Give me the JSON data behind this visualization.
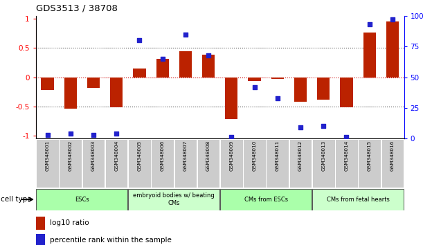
{
  "title": "GDS3513 / 38708",
  "samples": [
    "GSM348001",
    "GSM348002",
    "GSM348003",
    "GSM348004",
    "GSM348005",
    "GSM348006",
    "GSM348007",
    "GSM348008",
    "GSM348009",
    "GSM348010",
    "GSM348011",
    "GSM348012",
    "GSM348013",
    "GSM348014",
    "GSM348015",
    "GSM348016"
  ],
  "log10_ratio": [
    -0.22,
    -0.54,
    -0.18,
    -0.52,
    0.15,
    0.32,
    0.45,
    0.38,
    -0.72,
    -0.07,
    -0.03,
    -0.42,
    -0.38,
    -0.52,
    0.77,
    0.95
  ],
  "percentile_rank": [
    3,
    4,
    3,
    4,
    80,
    65,
    85,
    68,
    1,
    42,
    33,
    9,
    10,
    1,
    93,
    97
  ],
  "cell_type_groups": [
    {
      "label": "ESCs",
      "start": 0,
      "end": 4,
      "color": "#aaffaa"
    },
    {
      "label": "embryoid bodies w/ beating\nCMs",
      "start": 4,
      "end": 8,
      "color": "#ccffcc"
    },
    {
      "label": "CMs from ESCs",
      "start": 8,
      "end": 12,
      "color": "#aaffaa"
    },
    {
      "label": "CMs from fetal hearts",
      "start": 12,
      "end": 16,
      "color": "#ccffcc"
    }
  ],
  "bar_color": "#BB2200",
  "dot_color": "#2222CC",
  "left_yticks": [
    -1,
    -0.5,
    0,
    0.5,
    1
  ],
  "left_yticklabels": [
    "-1",
    "-0.5",
    "0",
    "0.5",
    "1"
  ],
  "right_yticks": [
    0,
    25,
    50,
    75,
    100
  ],
  "right_yticklabels": [
    "0",
    "25",
    "50",
    "75",
    "100%"
  ],
  "ylim_left": [
    -1.05,
    1.05
  ],
  "ylim_right": [
    0,
    100
  ],
  "hline_color_zero": "#CC0000",
  "hline_color_dotted": "#555555",
  "legend_ratio_label": "log10 ratio",
  "legend_rank_label": "percentile rank within the sample",
  "cell_type_label": "cell type",
  "background_color": "#ffffff",
  "bar_width": 0.55
}
